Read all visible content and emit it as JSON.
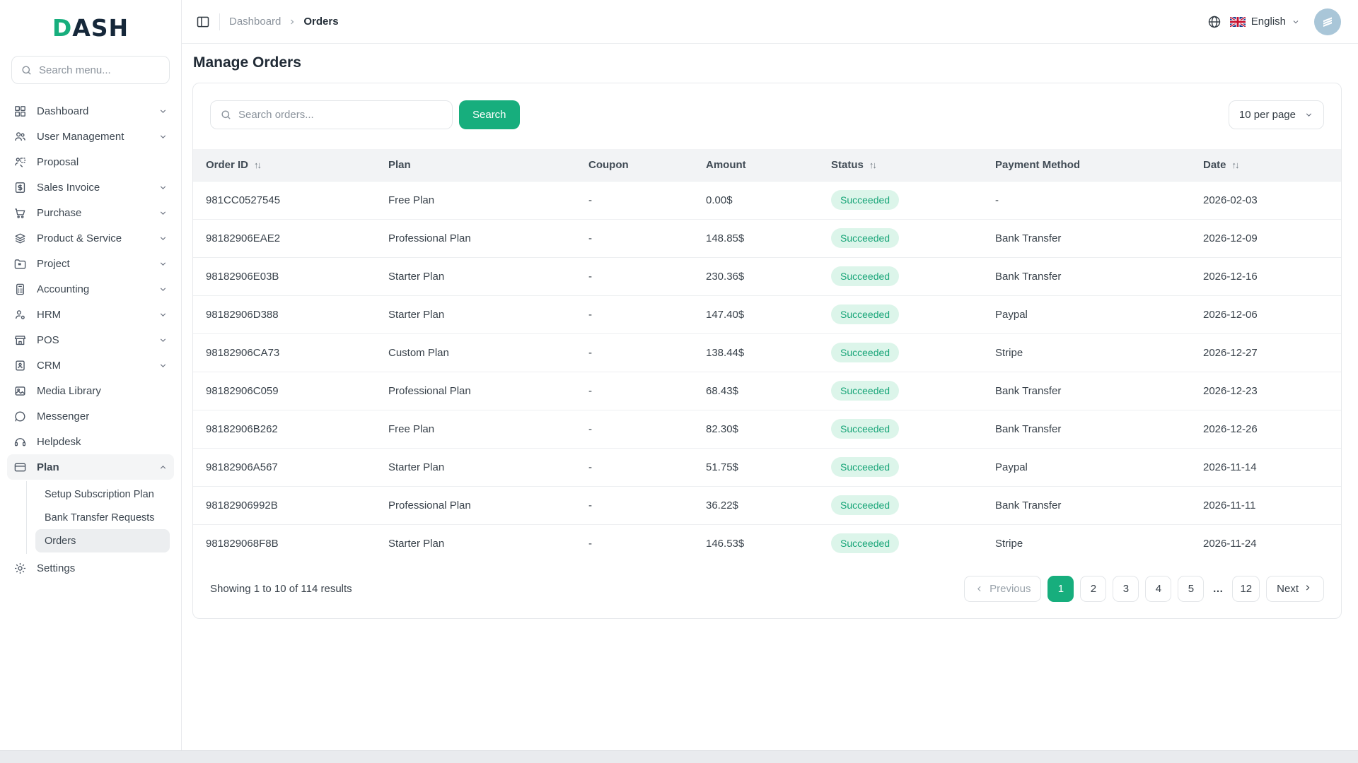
{
  "colors": {
    "accent": "#17ae7d",
    "badge_bg": "#dcf5ea",
    "badge_text": "#18a578",
    "logo_dark": "#16283a"
  },
  "brand": {
    "logo_first": "D",
    "logo_rest": "ASH"
  },
  "sidebar": {
    "search_placeholder": "Search menu...",
    "items": [
      {
        "label": "Dashboard",
        "icon": "grid-icon",
        "chevron": "down"
      },
      {
        "label": "User Management",
        "icon": "users-icon",
        "chevron": "down"
      },
      {
        "label": "Proposal",
        "icon": "proposal-icon",
        "chevron": null
      },
      {
        "label": "Sales Invoice",
        "icon": "invoice-icon",
        "chevron": "down"
      },
      {
        "label": "Purchase",
        "icon": "cart-icon",
        "chevron": "down"
      },
      {
        "label": "Product & Service",
        "icon": "layers-icon",
        "chevron": "down"
      },
      {
        "label": "Project",
        "icon": "folder-icon",
        "chevron": "down"
      },
      {
        "label": "Accounting",
        "icon": "calculator-icon",
        "chevron": "down"
      },
      {
        "label": "HRM",
        "icon": "person-badge-icon",
        "chevron": "down"
      },
      {
        "label": "POS",
        "icon": "store-icon",
        "chevron": "down"
      },
      {
        "label": "CRM",
        "icon": "contact-card-icon",
        "chevron": "down"
      },
      {
        "label": "Media Library",
        "icon": "image-icon",
        "chevron": null
      },
      {
        "label": "Messenger",
        "icon": "chat-icon",
        "chevron": null
      },
      {
        "label": "Helpdesk",
        "icon": "headset-icon",
        "chevron": null
      },
      {
        "label": "Plan",
        "icon": "credit-card-icon",
        "chevron": "up",
        "active": true,
        "submenu": [
          {
            "label": "Setup Subscription Plan",
            "active": false
          },
          {
            "label": "Bank Transfer Requests",
            "active": false
          },
          {
            "label": "Orders",
            "active": true
          }
        ]
      },
      {
        "label": "Settings",
        "icon": "gear-icon",
        "chevron": null
      }
    ]
  },
  "topbar": {
    "breadcrumb": {
      "parent": "Dashboard",
      "current": "Orders"
    },
    "language": "English"
  },
  "page": {
    "title": "Manage Orders"
  },
  "toolbar": {
    "search_placeholder": "Search orders...",
    "search_button": "Search",
    "per_page": "10 per page"
  },
  "table": {
    "columns": [
      {
        "label": "Order ID",
        "sortable": true
      },
      {
        "label": "Plan",
        "sortable": false
      },
      {
        "label": "Coupon",
        "sortable": false
      },
      {
        "label": "Amount",
        "sortable": false
      },
      {
        "label": "Status",
        "sortable": true
      },
      {
        "label": "Payment Method",
        "sortable": false
      },
      {
        "label": "Date",
        "sortable": true
      }
    ],
    "rows": [
      {
        "order_id": "981CC0527545",
        "plan": "Free Plan",
        "coupon": "-",
        "amount": "0.00$",
        "status": "Succeeded",
        "payment_method": "-",
        "date": "2026-02-03"
      },
      {
        "order_id": "98182906EAE2",
        "plan": "Professional Plan",
        "coupon": "-",
        "amount": "148.85$",
        "status": "Succeeded",
        "payment_method": "Bank Transfer",
        "date": "2026-12-09"
      },
      {
        "order_id": "98182906E03B",
        "plan": "Starter Plan",
        "coupon": "-",
        "amount": "230.36$",
        "status": "Succeeded",
        "payment_method": "Bank Transfer",
        "date": "2026-12-16"
      },
      {
        "order_id": "98182906D388",
        "plan": "Starter Plan",
        "coupon": "-",
        "amount": "147.40$",
        "status": "Succeeded",
        "payment_method": "Paypal",
        "date": "2026-12-06"
      },
      {
        "order_id": "98182906CA73",
        "plan": "Custom Plan",
        "coupon": "-",
        "amount": "138.44$",
        "status": "Succeeded",
        "payment_method": "Stripe",
        "date": "2026-12-27"
      },
      {
        "order_id": "98182906C059",
        "plan": "Professional Plan",
        "coupon": "-",
        "amount": "68.43$",
        "status": "Succeeded",
        "payment_method": "Bank Transfer",
        "date": "2026-12-23"
      },
      {
        "order_id": "98182906B262",
        "plan": "Free Plan",
        "coupon": "-",
        "amount": "82.30$",
        "status": "Succeeded",
        "payment_method": "Bank Transfer",
        "date": "2026-12-26"
      },
      {
        "order_id": "98182906A567",
        "plan": "Starter Plan",
        "coupon": "-",
        "amount": "51.75$",
        "status": "Succeeded",
        "payment_method": "Paypal",
        "date": "2026-11-14"
      },
      {
        "order_id": "98182906992B",
        "plan": "Professional Plan",
        "coupon": "-",
        "amount": "36.22$",
        "status": "Succeeded",
        "payment_method": "Bank Transfer",
        "date": "2026-11-11"
      },
      {
        "order_id": "981829068F8B",
        "plan": "Starter Plan",
        "coupon": "-",
        "amount": "146.53$",
        "status": "Succeeded",
        "payment_method": "Stripe",
        "date": "2026-11-24"
      }
    ]
  },
  "footer": {
    "summary": "Showing 1 to 10 of 114 results",
    "pagination": {
      "previous": "Previous",
      "next": "Next",
      "pages": [
        "1",
        "2",
        "3",
        "4",
        "5",
        "...",
        "12"
      ],
      "active_page": "1"
    }
  }
}
